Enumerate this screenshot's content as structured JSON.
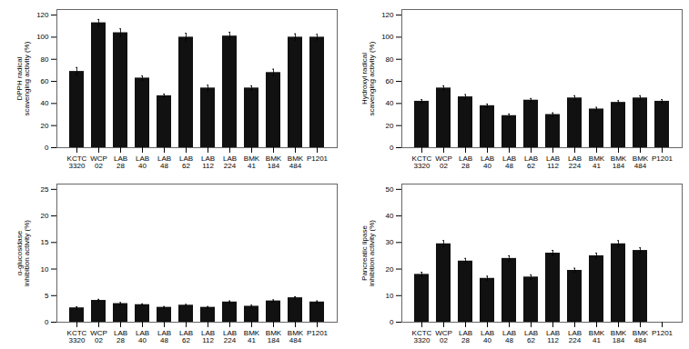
{
  "chart_data": [
    {
      "type": "bar",
      "categories": [
        "KCTC\n3320",
        "WCP\n02",
        "LAB\n28",
        "LAB\n40",
        "LAB\n48",
        "LAB\n62",
        "LAB\n112",
        "LAB\n224",
        "BMK\n41",
        "BMK\n184",
        "BMK\n484",
        "P1201"
      ],
      "values": [
        69,
        113,
        104,
        63,
        47,
        100,
        54,
        101,
        54,
        68,
        100,
        100
      ],
      "errors": [
        3.5,
        3.0,
        3.5,
        2.0,
        1.5,
        3.5,
        2.5,
        3.5,
        2.0,
        3.0,
        3.0,
        2.5
      ],
      "color": "#111111",
      "ylabel": "DPPH radical\nscavenging activity (%)",
      "ylim": [
        0,
        125
      ],
      "yticks": [
        0,
        20,
        40,
        60,
        80,
        100,
        120
      ],
      "grid": false
    },
    {
      "type": "bar",
      "categories": [
        "KCTC\n3320",
        "WCP\n02",
        "LAB\n28",
        "LAB\n40",
        "LAB\n48",
        "LAB\n62",
        "LAB\n112",
        "LAB\n224",
        "BMK\n41",
        "BMK\n184",
        "BMK\n484",
        "P1201"
      ],
      "values": [
        42,
        54,
        46,
        38,
        29,
        43,
        30,
        45,
        35,
        41,
        45,
        42
      ],
      "errors": [
        1.5,
        2.0,
        2.0,
        1.5,
        1.5,
        1.5,
        1.5,
        2.0,
        1.5,
        1.5,
        2.0,
        1.5
      ],
      "color": "#111111",
      "ylabel": "Hydroxyl radical\nscavenging activity (%)",
      "ylim": [
        0,
        125
      ],
      "yticks": [
        0,
        20,
        40,
        60,
        80,
        100,
        120
      ],
      "grid": false
    },
    {
      "type": "bar",
      "categories": [
        "KCTC\n3320",
        "WCP\n02",
        "LAB\n28",
        "LAB\n40",
        "LAB\n48",
        "LAB\n62",
        "LAB\n112",
        "LAB\n224",
        "BMK\n41",
        "BMK\n184",
        "BMK\n484",
        "P1201"
      ],
      "values": [
        2.7,
        4.1,
        3.5,
        3.3,
        2.8,
        3.2,
        2.8,
        3.8,
        3.0,
        4.0,
        4.6,
        3.8
      ],
      "errors": [
        0.2,
        0.2,
        0.2,
        0.15,
        0.15,
        0.15,
        0.15,
        0.2,
        0.2,
        0.2,
        0.2,
        0.2
      ],
      "color": "#111111",
      "ylabel": "α-glucosidase\ninhibition activity (%)",
      "ylim": [
        0,
        26
      ],
      "yticks": [
        0,
        5,
        10,
        15,
        20,
        25
      ],
      "grid": false
    },
    {
      "type": "bar",
      "categories": [
        "KCTC\n3320",
        "WCP\n02",
        "LAB\n28",
        "LAB\n40",
        "LAB\n48",
        "LAB\n62",
        "LAB\n112",
        "LAB\n224",
        "BMK\n41",
        "BMK\n184",
        "BMK\n484",
        "P1201"
      ],
      "values": [
        18.0,
        29.5,
        23.0,
        16.5,
        24.0,
        17.0,
        26.0,
        19.5,
        25.0,
        29.5,
        27.0,
        0
      ],
      "errors": [
        0.8,
        1.2,
        1.0,
        0.8,
        1.0,
        0.8,
        1.0,
        0.8,
        1.0,
        1.2,
        1.0,
        0
      ],
      "color": "#111111",
      "ylabel": "Pancreatic lipase\ninhibition activity (%)",
      "ylim": [
        0,
        52
      ],
      "yticks": [
        0,
        10,
        20,
        30,
        40,
        50
      ],
      "grid": false
    }
  ]
}
